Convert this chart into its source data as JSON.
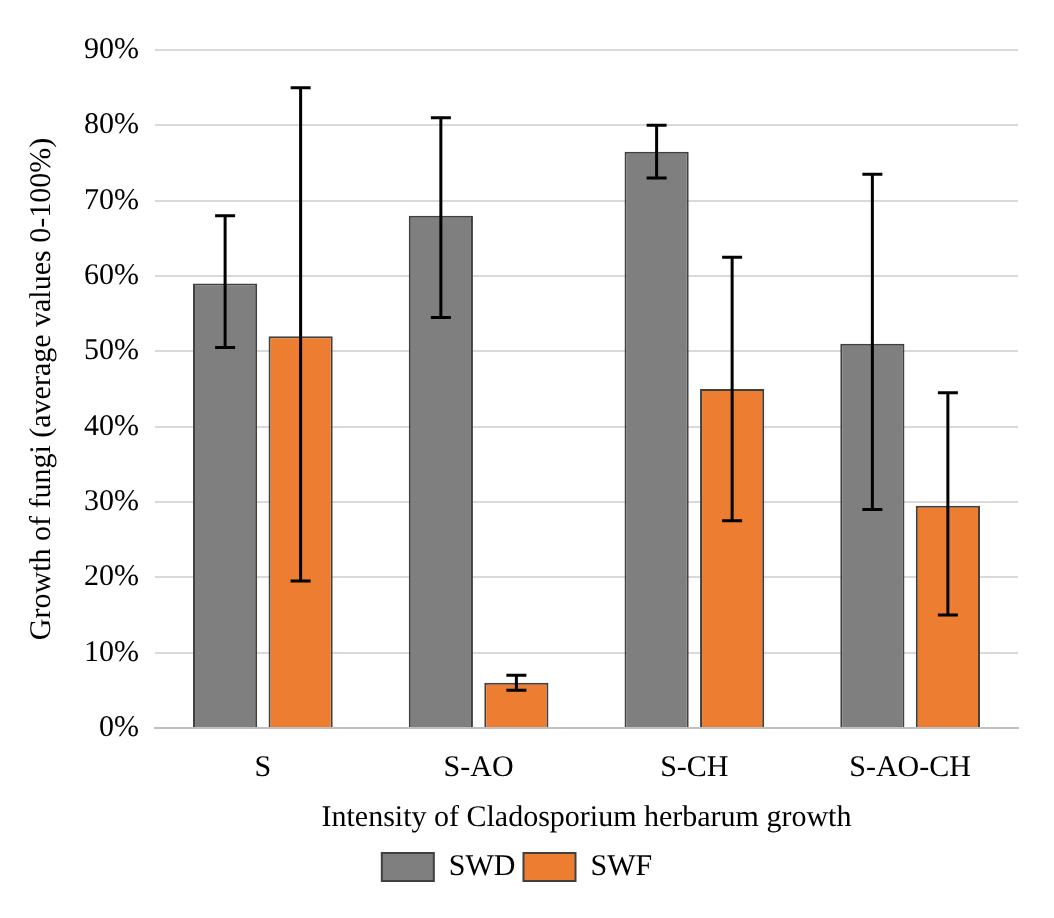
{
  "chart_data": {
    "type": "bar",
    "ylabel": "Growth of fungi (average values 0-100%)",
    "xlabel": "Intensity of Cladosporium herbarum growth",
    "categories": [
      "S",
      "S-AO",
      "S-CH",
      "S-AO-CH"
    ],
    "series": [
      {
        "name": "SWD",
        "color": "#7f7f7f",
        "values": [
          59,
          68,
          76.5,
          51
        ],
        "errors": [
          [
            50.5,
            68
          ],
          [
            54.5,
            81
          ],
          [
            73,
            80
          ],
          [
            29,
            73.5
          ]
        ]
      },
      {
        "name": "SWF",
        "color": "#ed7d31",
        "values": [
          52,
          6,
          45,
          29.5
        ],
        "errors": [
          [
            19.5,
            85
          ],
          [
            5,
            7
          ],
          [
            27.5,
            62.5
          ],
          [
            15,
            44.5
          ]
        ]
      }
    ],
    "ylim": [
      0,
      90
    ],
    "yticks": [
      {
        "value": 0,
        "label": "0%"
      },
      {
        "value": 10,
        "label": "10%"
      },
      {
        "value": 20,
        "label": "20%"
      },
      {
        "value": 30,
        "label": "30%"
      },
      {
        "value": 40,
        "label": "40%"
      },
      {
        "value": 50,
        "label": "50%"
      },
      {
        "value": 60,
        "label": "60%"
      },
      {
        "value": 70,
        "label": "70%"
      },
      {
        "value": 80,
        "label": "80%"
      },
      {
        "value": 90,
        "label": "90%"
      }
    ],
    "grid": "y",
    "legend": "bottom"
  }
}
